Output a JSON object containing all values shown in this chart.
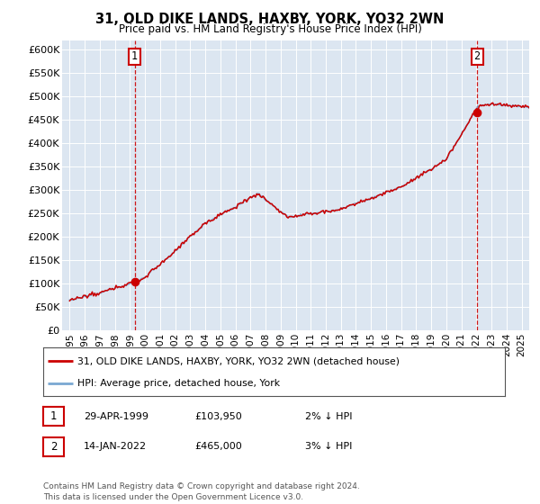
{
  "title1": "31, OLD DIKE LANDS, HAXBY, YORK, YO32 2WN",
  "title2": "Price paid vs. HM Land Registry's House Price Index (HPI)",
  "plot_bg_color": "#dce6f1",
  "ylim": [
    0,
    620000
  ],
  "yticks": [
    0,
    50000,
    100000,
    150000,
    200000,
    250000,
    300000,
    350000,
    400000,
    450000,
    500000,
    550000,
    600000
  ],
  "ytick_labels": [
    "£0",
    "£50K",
    "£100K",
    "£150K",
    "£200K",
    "£250K",
    "£300K",
    "£350K",
    "£400K",
    "£450K",
    "£500K",
    "£550K",
    "£600K"
  ],
  "legend_line1": "31, OLD DIKE LANDS, HAXBY, YORK, YO32 2WN (detached house)",
  "legend_line2": "HPI: Average price, detached house, York",
  "annotation1_label": "1",
  "annotation1_date": "29-APR-1999",
  "annotation1_price": "£103,950",
  "annotation1_hpi": "2% ↓ HPI",
  "annotation2_label": "2",
  "annotation2_date": "14-JAN-2022",
  "annotation2_price": "£465,000",
  "annotation2_hpi": "3% ↓ HPI",
  "footer": "Contains HM Land Registry data © Crown copyright and database right 2024.\nThis data is licensed under the Open Government Licence v3.0.",
  "sale1_x": 1999.32,
  "sale1_y": 103950,
  "sale2_x": 2022.04,
  "sale2_y": 465000,
  "red_line_color": "#cc0000",
  "blue_line_color": "#7aa8d2",
  "marker_color": "#cc0000",
  "xtick_years": [
    1995,
    1996,
    1997,
    1998,
    1999,
    2000,
    2001,
    2002,
    2003,
    2004,
    2005,
    2006,
    2007,
    2008,
    2009,
    2010,
    2011,
    2012,
    2013,
    2014,
    2015,
    2016,
    2017,
    2018,
    2019,
    2020,
    2021,
    2022,
    2023,
    2024,
    2025
  ],
  "xmin": 1994.5,
  "xmax": 2025.5
}
